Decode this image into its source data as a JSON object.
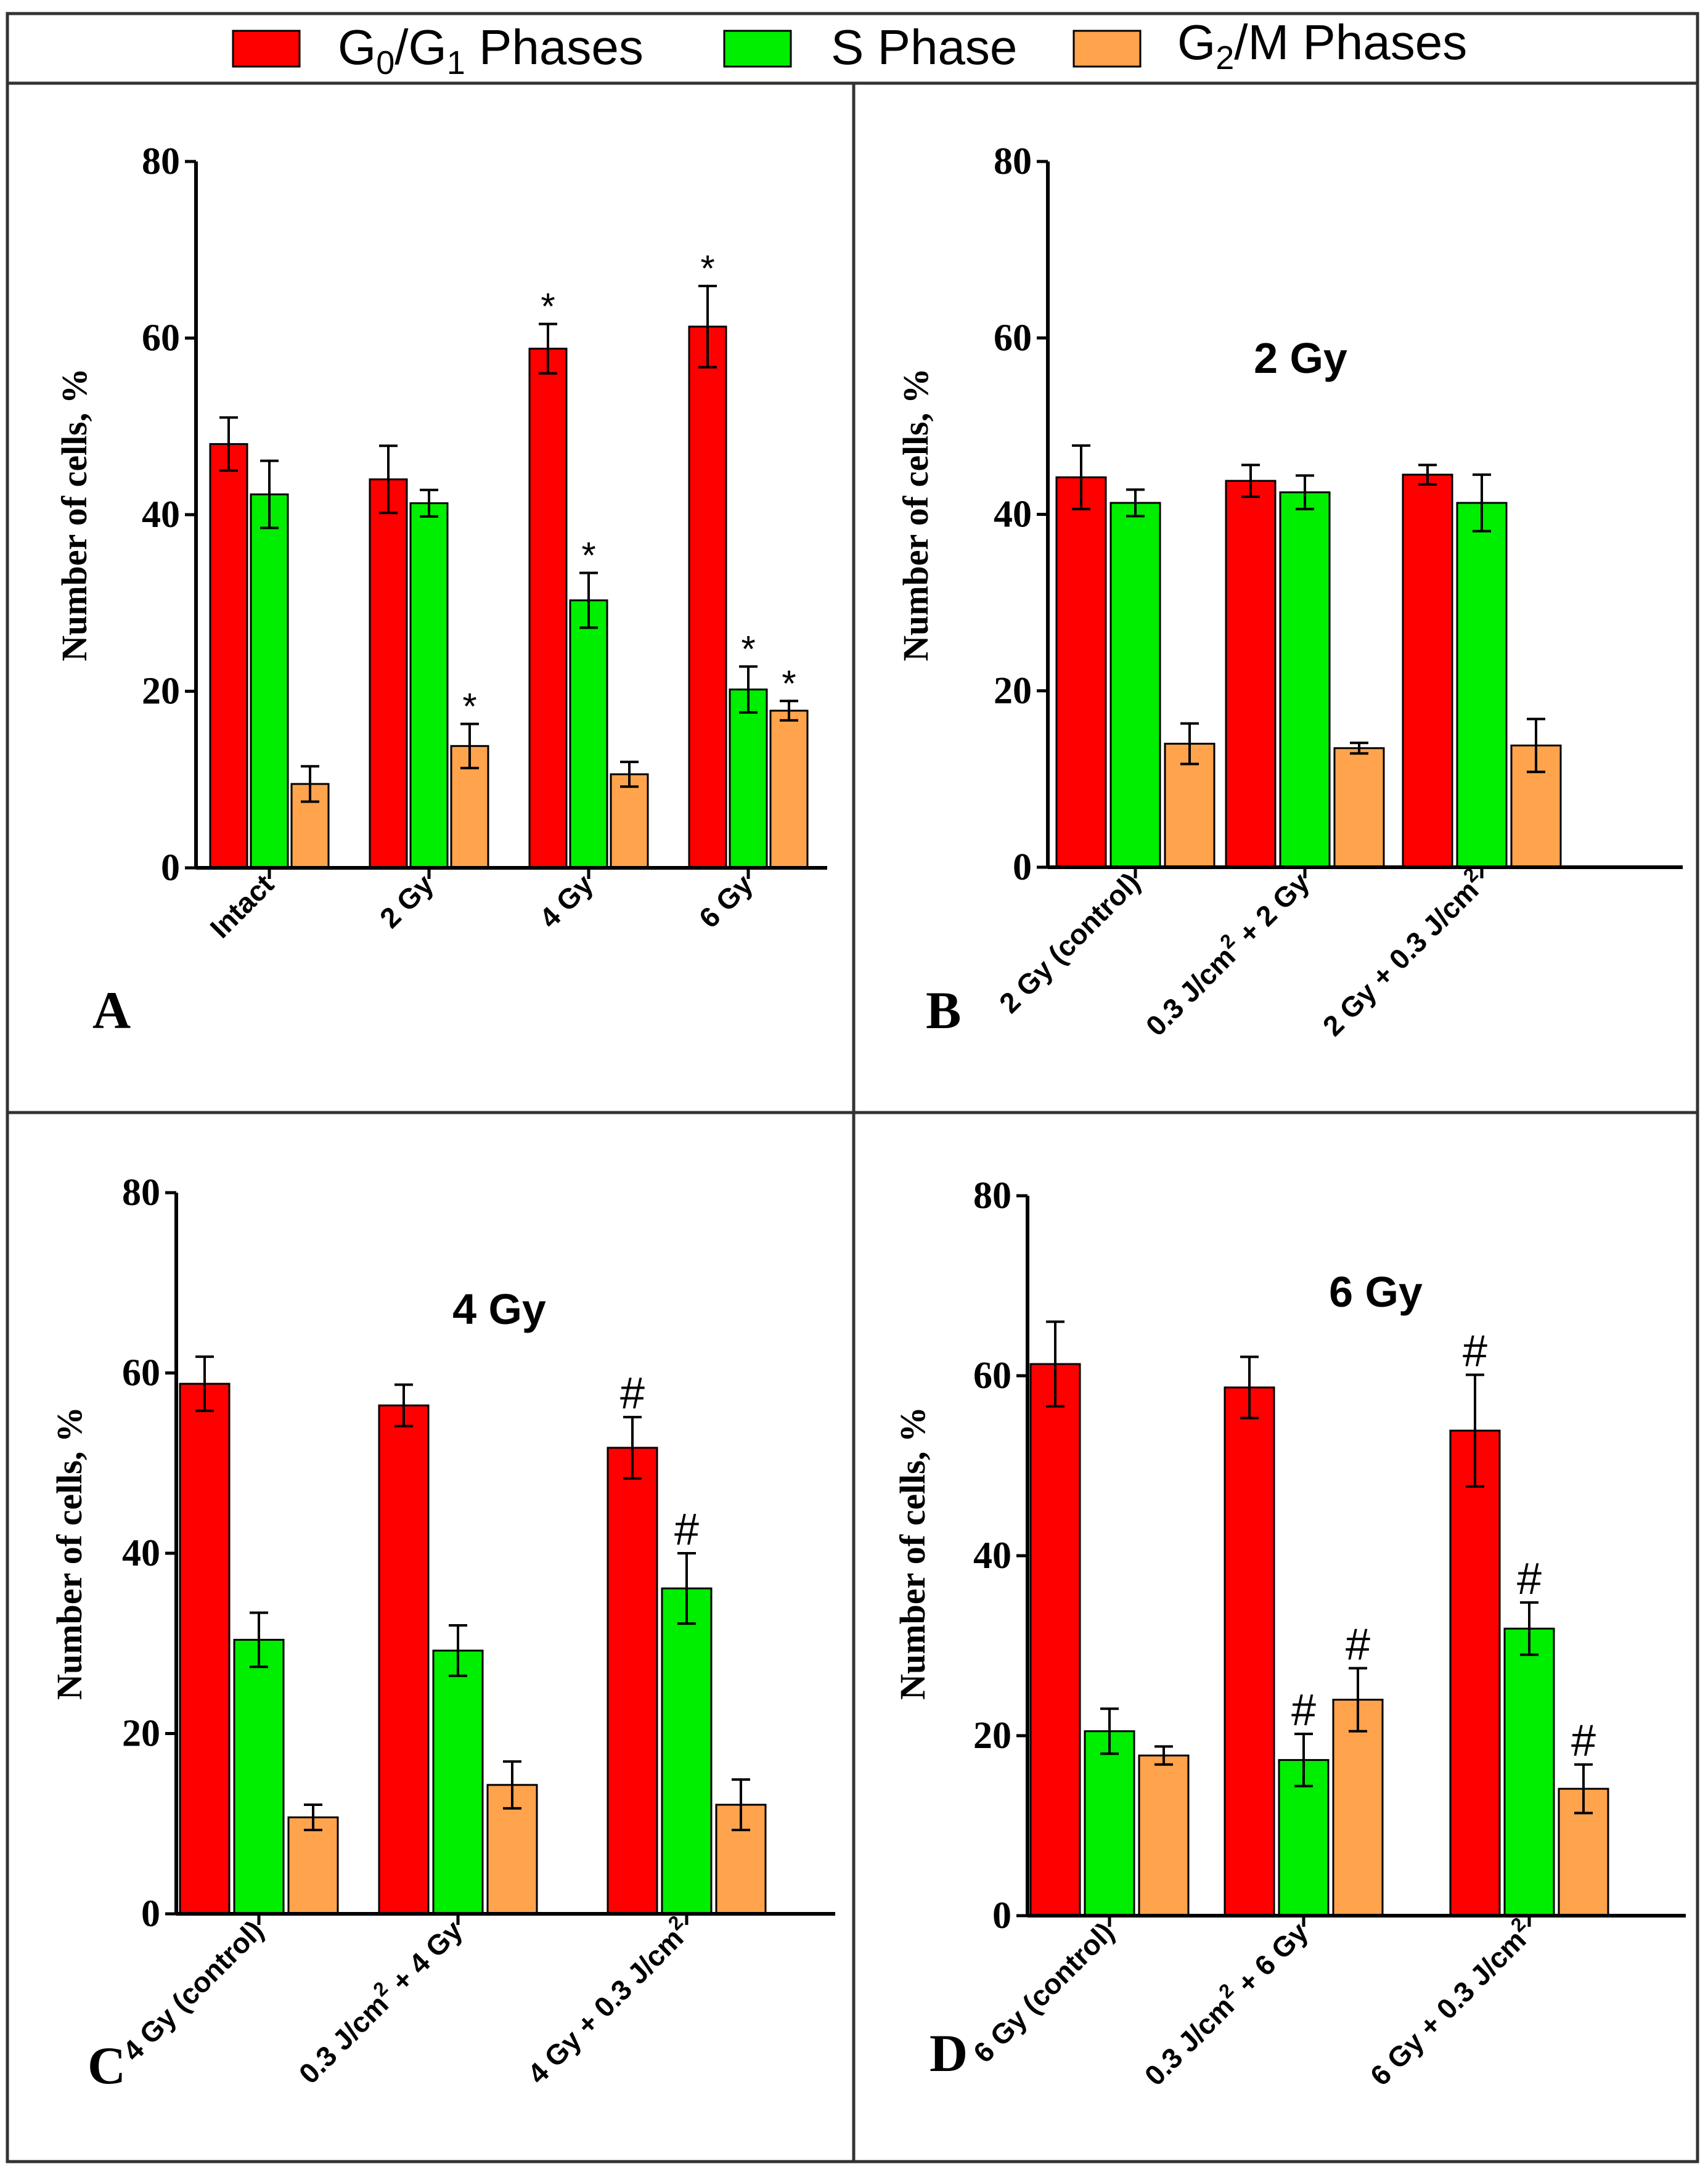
{
  "legend": [
    {
      "main": "G",
      "sub1": "0",
      "mid": "/G",
      "sub2": "1",
      "tail": " Phases",
      "color": "#ff0000"
    },
    {
      "main": "S Phase",
      "sub1": "",
      "mid": "",
      "sub2": "",
      "tail": "",
      "color": "#00ee00"
    },
    {
      "main": "G",
      "sub1": "2",
      "mid": "/M Phases",
      "sub2": "",
      "tail": "",
      "color": "#ffa34d"
    }
  ],
  "colors": {
    "g0g1": "#ff0000",
    "s": "#00ee00",
    "g2m": "#ffa34d",
    "axis": "#000000",
    "frame": "#333333"
  },
  "chart_data": [
    {
      "type": "bar",
      "panel_label": "A",
      "title": "",
      "ylabel": "Number of cells, %",
      "ylim": [
        0,
        80
      ],
      "yticks": [
        "0",
        "20",
        "40",
        "60",
        "80"
      ],
      "categories": [
        {
          "main": "Intact",
          "sup": "",
          "tail": ""
        },
        {
          "main": "2 Gy",
          "sup": "",
          "tail": ""
        },
        {
          "main": "4 Gy",
          "sup": "",
          "tail": ""
        },
        {
          "main": "6 Gy",
          "sup": "",
          "tail": ""
        }
      ],
      "series": [
        {
          "name": "G0/G1 Phases",
          "values": [
            48,
            44,
            58.8,
            61.3
          ],
          "errors": [
            3,
            3.8,
            2.8,
            4.6
          ],
          "marks": [
            "",
            "",
            "*",
            "*"
          ]
        },
        {
          "name": "S Phase",
          "values": [
            42.3,
            41.3,
            30.3,
            20.2
          ],
          "errors": [
            3.8,
            1.5,
            3.1,
            2.6
          ],
          "marks": [
            "",
            "",
            "*",
            "*"
          ]
        },
        {
          "name": "G2/M Phases",
          "values": [
            9.5,
            13.8,
            10.6,
            17.8
          ],
          "errors": [
            2,
            2.5,
            1.4,
            1.1
          ],
          "marks": [
            "",
            "*",
            "",
            "*"
          ]
        }
      ]
    },
    {
      "type": "bar",
      "panel_label": "B",
      "title": "2 Gy",
      "ylabel": "Number of cells, %",
      "ylim": [
        0,
        80
      ],
      "yticks": [
        "0",
        "20",
        "40",
        "60",
        "80"
      ],
      "categories": [
        {
          "main": "2 Gy (control)",
          "sup": "",
          "tail": ""
        },
        {
          "main": "0.3 J/cm",
          "sup": "2",
          "tail": " + 2 Gy"
        },
        {
          "main": "2 Gy + 0.3 J/cm",
          "sup": "2",
          "tail": ""
        }
      ],
      "series": [
        {
          "name": "G0/G1 Phases",
          "values": [
            44.2,
            43.8,
            44.5
          ],
          "errors": [
            3.6,
            1.8,
            1.1
          ],
          "marks": [
            "",
            "",
            ""
          ]
        },
        {
          "name": "S Phase",
          "values": [
            41.3,
            42.5,
            41.3
          ],
          "errors": [
            1.5,
            1.9,
            3.2
          ],
          "marks": [
            "",
            "",
            ""
          ]
        },
        {
          "name": "G2/M Phases",
          "values": [
            14,
            13.5,
            13.8
          ],
          "errors": [
            2.3,
            0.6,
            3
          ],
          "marks": [
            "",
            "",
            ""
          ]
        }
      ]
    },
    {
      "type": "bar",
      "panel_label": "C",
      "title": "4 Gy",
      "ylabel": "Number of cells, %",
      "ylim": [
        0,
        80
      ],
      "yticks": [
        "0",
        "20",
        "40",
        "60",
        "80"
      ],
      "categories": [
        {
          "main": "4 Gy (control)",
          "sup": "",
          "tail": ""
        },
        {
          "main": "0.3 J/cm",
          "sup": "2",
          "tail": " + 4 Gy"
        },
        {
          "main": "4 Gy + 0.3 J/cm",
          "sup": "2",
          "tail": ""
        }
      ],
      "series": [
        {
          "name": "G0/G1 Phases",
          "values": [
            58.8,
            56.4,
            51.7
          ],
          "errors": [
            3,
            2.3,
            3.4
          ],
          "marks": [
            "",
            "",
            "#"
          ]
        },
        {
          "name": "S Phase",
          "values": [
            30.4,
            29.2,
            36.1
          ],
          "errors": [
            3,
            2.8,
            3.9
          ],
          "marks": [
            "",
            "",
            "#"
          ]
        },
        {
          "name": "G2/M Phases",
          "values": [
            10.7,
            14.3,
            12.1
          ],
          "errors": [
            1.4,
            2.6,
            2.8
          ],
          "marks": [
            "",
            "",
            ""
          ]
        }
      ]
    },
    {
      "type": "bar",
      "panel_label": "D",
      "title": "6 Gy",
      "ylabel": "Number of cells, %",
      "ylim": [
        0,
        80
      ],
      "yticks": [
        "0",
        "20",
        "40",
        "60",
        "80"
      ],
      "categories": [
        {
          "main": "6 Gy (control)",
          "sup": "",
          "tail": ""
        },
        {
          "main": "0.3 J/cm",
          "sup": "2",
          "tail": " + 6 Gy"
        },
        {
          "main": "6 Gy + 0.3 J/cm",
          "sup": "2",
          "tail": ""
        }
      ],
      "series": [
        {
          "name": "G0/G1 Phases",
          "values": [
            61.3,
            58.7,
            53.9
          ],
          "errors": [
            4.7,
            3.4,
            6.2
          ],
          "marks": [
            "",
            "",
            "#"
          ]
        },
        {
          "name": "S Phase",
          "values": [
            20.5,
            17.3,
            31.9
          ],
          "errors": [
            2.5,
            2.9,
            2.9
          ],
          "marks": [
            "",
            "#",
            "#"
          ]
        },
        {
          "name": "G2/M Phases",
          "values": [
            17.8,
            24,
            14.1
          ],
          "errors": [
            1,
            3.5,
            2.7
          ],
          "marks": [
            "",
            "#",
            "#"
          ]
        }
      ]
    }
  ]
}
